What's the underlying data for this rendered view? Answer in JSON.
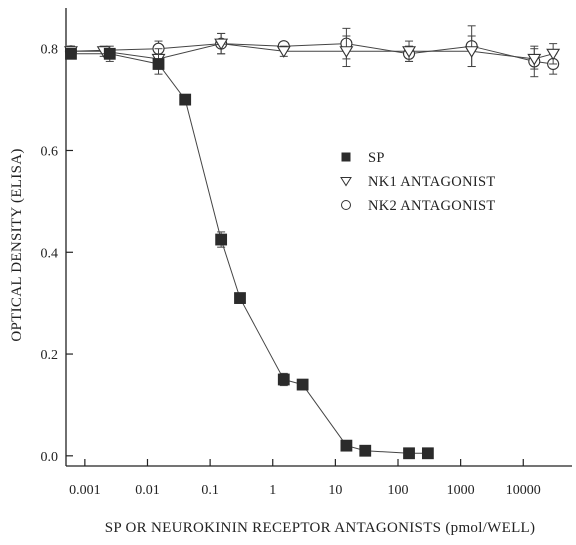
{
  "chart_data": {
    "type": "line",
    "xscale": "log",
    "xlabel": "SP OR NEUROKININ RECEPTOR ANTAGONISTS (pmol/WELL)",
    "ylabel": "OPTICAL DENSITY (ELISA)",
    "xlim": [
      0.0005,
      60000
    ],
    "ylim": [
      -0.02,
      0.88
    ],
    "x_ticks": [
      {
        "value": 0.001,
        "label": "0.001"
      },
      {
        "value": 0.01,
        "label": "0.01"
      },
      {
        "value": 0.1,
        "label": "0.1"
      },
      {
        "value": 1,
        "label": "1"
      },
      {
        "value": 10,
        "label": "10"
      },
      {
        "value": 100,
        "label": "100"
      },
      {
        "value": 1000,
        "label": "1000"
      },
      {
        "value": 10000,
        "label": "10000"
      }
    ],
    "y_ticks": [
      {
        "value": 0.0,
        "label": "0.0"
      },
      {
        "value": 0.2,
        "label": "0.2"
      },
      {
        "value": 0.4,
        "label": "0.4"
      },
      {
        "value": 0.6,
        "label": "0.6"
      },
      {
        "value": 0.8,
        "label": "0.8"
      }
    ],
    "grid": false,
    "legend_position": "right-middle",
    "series": [
      {
        "name": "SP",
        "marker": "square-filled",
        "x": [
          0.0006,
          0.0025,
          0.015,
          0.04,
          0.15,
          0.3,
          1.5,
          3,
          15,
          30,
          150,
          300
        ],
        "y": [
          0.79,
          0.79,
          0.77,
          0.7,
          0.425,
          0.31,
          0.15,
          0.14,
          0.02,
          0.01,
          0.005,
          0.005
        ],
        "err": [
          0.01,
          0.015,
          0.02,
          0.005,
          0.015,
          0.01,
          0.012,
          0.005,
          0.008,
          0.005,
          0.005,
          0.005
        ]
      },
      {
        "name": "NK1 ANTAGONIST",
        "marker": "triangle-down-open",
        "x": [
          0.0006,
          0.002,
          0.015,
          0.15,
          1.5,
          15,
          150,
          1500,
          15000,
          30000
        ],
        "y": [
          0.795,
          0.795,
          0.78,
          0.81,
          0.795,
          0.795,
          0.795,
          0.795,
          0.78,
          0.79
        ],
        "err": [
          0.01,
          0.01,
          0.02,
          0.02,
          0.01,
          0.03,
          0.02,
          0.03,
          0.02,
          0.02
        ]
      },
      {
        "name": "NK2 ANTAGONIST",
        "marker": "circle-open",
        "x": [
          0.0006,
          0.015,
          0.15,
          1.5,
          15,
          150,
          1500,
          15000,
          30000
        ],
        "y": [
          0.795,
          0.8,
          0.81,
          0.805,
          0.81,
          0.79,
          0.805,
          0.775,
          0.77
        ],
        "err": [
          0.01,
          0.015,
          0.02,
          0.005,
          0.03,
          0.015,
          0.04,
          0.03,
          0.02
        ]
      }
    ]
  }
}
